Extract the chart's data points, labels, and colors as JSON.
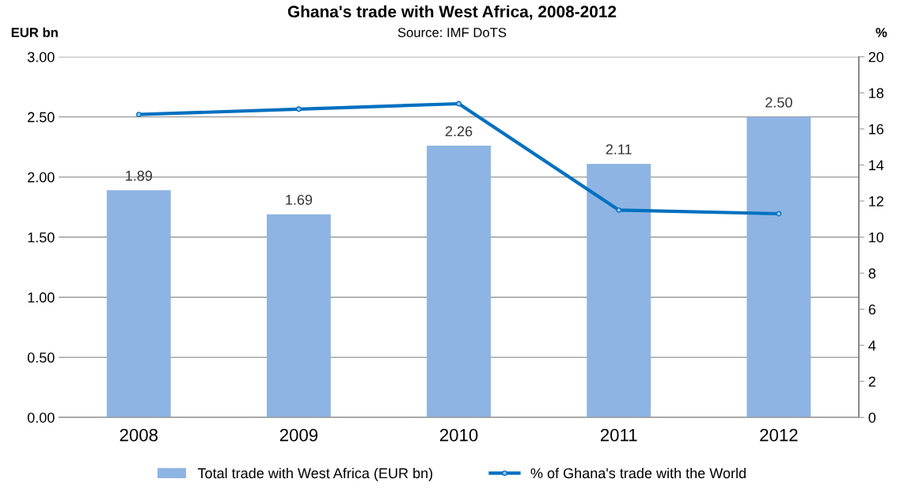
{
  "chart_data": {
    "type": "bar",
    "title": "Ghana's trade with West Africa, 2008-2012",
    "subtitle": "Source: IMF DoTS",
    "ylabel": "EUR bn",
    "y2label": "%",
    "categories": [
      "2008",
      "2009",
      "2010",
      "2011",
      "2012"
    ],
    "series": [
      {
        "name": "Total trade with West Africa (EUR bn)",
        "color": "#8eb4e3",
        "values": [
          1.89,
          1.69,
          2.26,
          2.11,
          2.5
        ],
        "value_labels": [
          "1.89",
          "1.69",
          "2.26",
          "2.11",
          "2.50"
        ]
      },
      {
        "name": "% of Ghana's trade with the World",
        "type": "line",
        "axis": "y2",
        "color": "#0070c0",
        "marker": "circle",
        "values": [
          16.8,
          17.1,
          17.4,
          11.5,
          11.3
        ]
      }
    ],
    "ylim": [
      0,
      3
    ],
    "yticks": [
      {
        "value": 0,
        "label": "0.00"
      },
      {
        "value": 0.5,
        "label": "0.50"
      },
      {
        "value": 1,
        "label": "1.00"
      },
      {
        "value": 1.5,
        "label": "1.50"
      },
      {
        "value": 2,
        "label": "2.00"
      },
      {
        "value": 2.5,
        "label": "2.50"
      },
      {
        "value": 3,
        "label": "3.00"
      }
    ],
    "y2lim": [
      0,
      20
    ],
    "y2ticks": [
      0,
      2,
      4,
      6,
      8,
      10,
      12,
      14,
      16,
      18,
      20
    ],
    "grid": "y",
    "legend": "bottom"
  }
}
